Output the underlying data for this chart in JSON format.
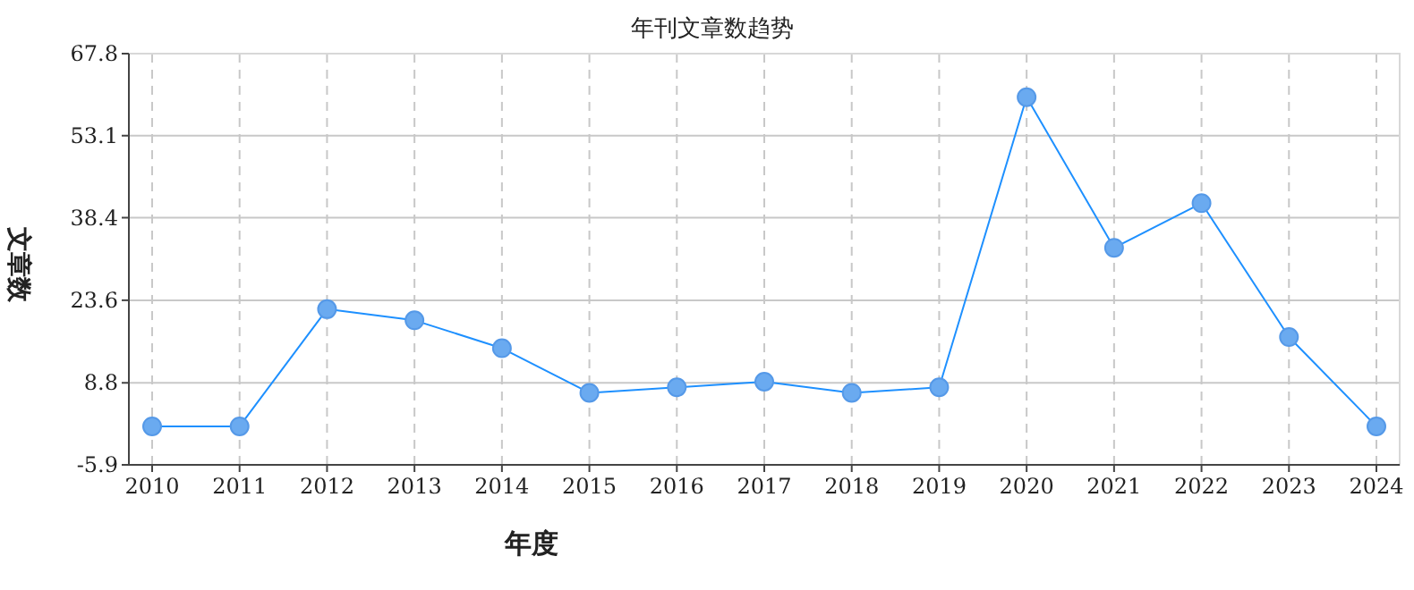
{
  "chart_data": {
    "type": "line",
    "title": "年刊文章数趋势",
    "xlabel": "年度",
    "ylabel": "文章数",
    "categories": [
      "2010",
      "2011",
      "2012",
      "2013",
      "2014",
      "2015",
      "2016",
      "2017",
      "2018",
      "2019",
      "2020",
      "2021",
      "2022",
      "2023",
      "2024"
    ],
    "series": [
      {
        "color": "#1e90ff",
        "values": [
          1,
          1,
          22,
          20,
          15,
          7,
          8,
          9,
          7,
          8,
          60,
          33,
          41,
          17,
          1
        ]
      }
    ],
    "ylim": [
      -5.9,
      67.8
    ],
    "yticks": [
      -5.9,
      8.8,
      23.6,
      38.4,
      53.1,
      67.8
    ],
    "grid": true,
    "marker": "circle",
    "line_style": "solid"
  }
}
